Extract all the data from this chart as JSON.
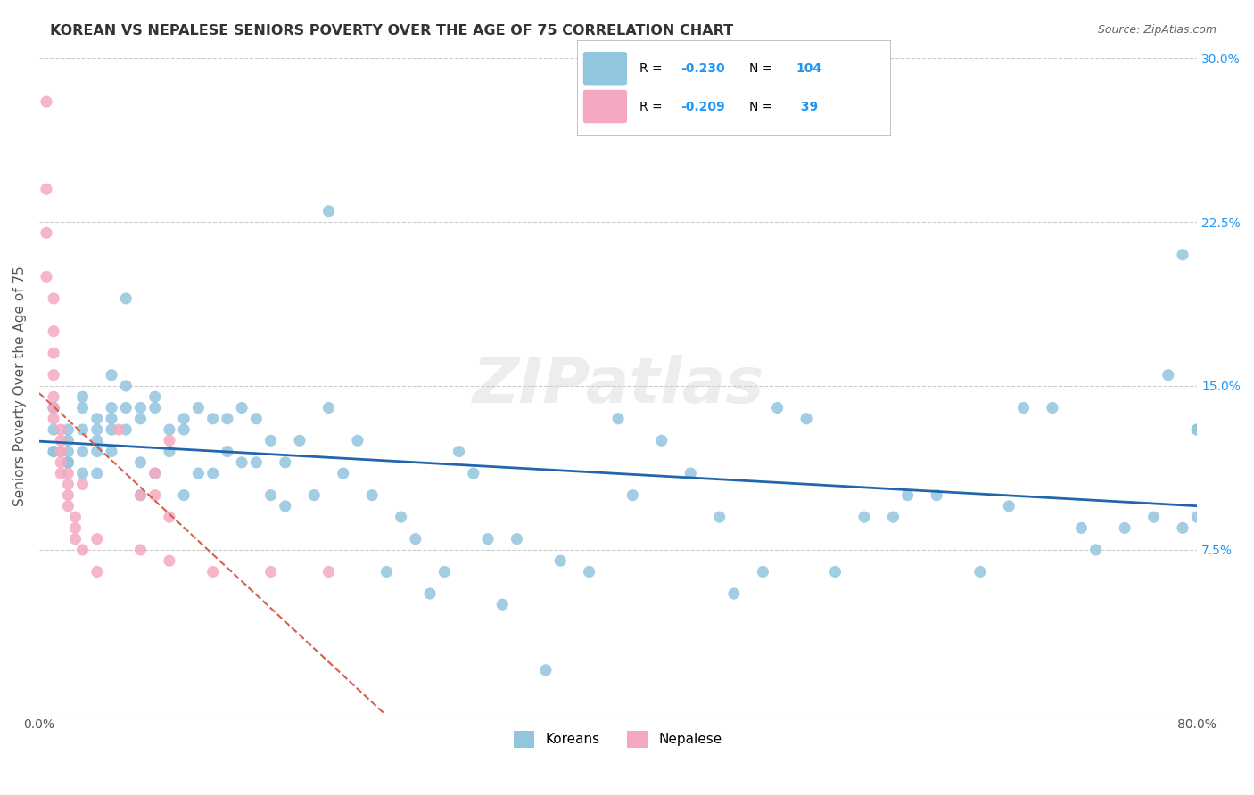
{
  "title": "KOREAN VS NEPALESE SENIORS POVERTY OVER THE AGE OF 75 CORRELATION CHART",
  "source": "Source: ZipAtlas.com",
  "xlabel": "",
  "ylabel": "Seniors Poverty Over the Age of 75",
  "xlim": [
    0.0,
    0.8
  ],
  "ylim": [
    0.0,
    0.3
  ],
  "xticks": [
    0.0,
    0.1,
    0.2,
    0.3,
    0.4,
    0.5,
    0.6,
    0.7,
    0.8
  ],
  "xticklabels": [
    "0.0%",
    "",
    "",
    "",
    "",
    "",
    "",
    "",
    "80.0%"
  ],
  "ytick_positions": [
    0.0,
    0.075,
    0.15,
    0.225,
    0.3
  ],
  "ytick_labels": [
    "",
    "7.5%",
    "15.0%",
    "22.5%",
    "30.0%"
  ],
  "korean_R": -0.23,
  "korean_N": 104,
  "nepalese_R": -0.209,
  "nepalese_N": 39,
  "korean_color": "#92c5de",
  "nepalese_color": "#f4a9c0",
  "korean_line_color": "#2166ac",
  "nepalese_line_color": "#d6604d",
  "watermark": "ZIPatlas",
  "background_color": "#ffffff",
  "grid_color": "#cccccc",
  "koreans_x": [
    0.01,
    0.01,
    0.01,
    0.01,
    0.01,
    0.02,
    0.02,
    0.02,
    0.02,
    0.02,
    0.02,
    0.03,
    0.03,
    0.03,
    0.03,
    0.03,
    0.04,
    0.04,
    0.04,
    0.04,
    0.04,
    0.05,
    0.05,
    0.05,
    0.05,
    0.05,
    0.06,
    0.06,
    0.06,
    0.06,
    0.07,
    0.07,
    0.07,
    0.07,
    0.08,
    0.08,
    0.08,
    0.09,
    0.09,
    0.1,
    0.1,
    0.1,
    0.11,
    0.11,
    0.12,
    0.12,
    0.13,
    0.13,
    0.14,
    0.14,
    0.15,
    0.15,
    0.16,
    0.16,
    0.17,
    0.17,
    0.18,
    0.19,
    0.2,
    0.2,
    0.21,
    0.22,
    0.23,
    0.24,
    0.25,
    0.26,
    0.27,
    0.28,
    0.29,
    0.3,
    0.31,
    0.32,
    0.33,
    0.35,
    0.36,
    0.38,
    0.4,
    0.41,
    0.43,
    0.45,
    0.47,
    0.48,
    0.5,
    0.51,
    0.53,
    0.55,
    0.57,
    0.59,
    0.6,
    0.62,
    0.65,
    0.67,
    0.68,
    0.7,
    0.72,
    0.73,
    0.75,
    0.77,
    0.78,
    0.79,
    0.79,
    0.8,
    0.8,
    0.8
  ],
  "koreans_y": [
    0.12,
    0.13,
    0.14,
    0.14,
    0.12,
    0.13,
    0.115,
    0.12,
    0.125,
    0.115,
    0.115,
    0.145,
    0.14,
    0.13,
    0.12,
    0.11,
    0.135,
    0.13,
    0.125,
    0.12,
    0.11,
    0.155,
    0.14,
    0.135,
    0.13,
    0.12,
    0.19,
    0.15,
    0.14,
    0.13,
    0.14,
    0.135,
    0.115,
    0.1,
    0.145,
    0.14,
    0.11,
    0.13,
    0.12,
    0.135,
    0.13,
    0.1,
    0.14,
    0.11,
    0.135,
    0.11,
    0.135,
    0.12,
    0.14,
    0.115,
    0.135,
    0.115,
    0.125,
    0.1,
    0.115,
    0.095,
    0.125,
    0.1,
    0.23,
    0.14,
    0.11,
    0.125,
    0.1,
    0.065,
    0.09,
    0.08,
    0.055,
    0.065,
    0.12,
    0.11,
    0.08,
    0.05,
    0.08,
    0.02,
    0.07,
    0.065,
    0.135,
    0.1,
    0.125,
    0.11,
    0.09,
    0.055,
    0.065,
    0.14,
    0.135,
    0.065,
    0.09,
    0.09,
    0.1,
    0.1,
    0.065,
    0.095,
    0.14,
    0.14,
    0.085,
    0.075,
    0.085,
    0.09,
    0.155,
    0.21,
    0.085,
    0.09,
    0.13,
    0.13
  ],
  "nepalese_x": [
    0.005,
    0.005,
    0.005,
    0.005,
    0.01,
    0.01,
    0.01,
    0.01,
    0.01,
    0.01,
    0.01,
    0.015,
    0.015,
    0.015,
    0.015,
    0.015,
    0.015,
    0.02,
    0.02,
    0.02,
    0.02,
    0.025,
    0.025,
    0.025,
    0.03,
    0.03,
    0.04,
    0.04,
    0.055,
    0.07,
    0.07,
    0.08,
    0.08,
    0.09,
    0.09,
    0.09,
    0.12,
    0.16,
    0.2
  ],
  "nepalese_y": [
    0.28,
    0.24,
    0.22,
    0.2,
    0.19,
    0.175,
    0.165,
    0.155,
    0.145,
    0.14,
    0.135,
    0.13,
    0.125,
    0.12,
    0.12,
    0.115,
    0.11,
    0.11,
    0.105,
    0.1,
    0.095,
    0.09,
    0.085,
    0.08,
    0.105,
    0.075,
    0.08,
    0.065,
    0.13,
    0.1,
    0.075,
    0.11,
    0.1,
    0.125,
    0.09,
    0.07,
    0.065,
    0.065,
    0.065
  ]
}
